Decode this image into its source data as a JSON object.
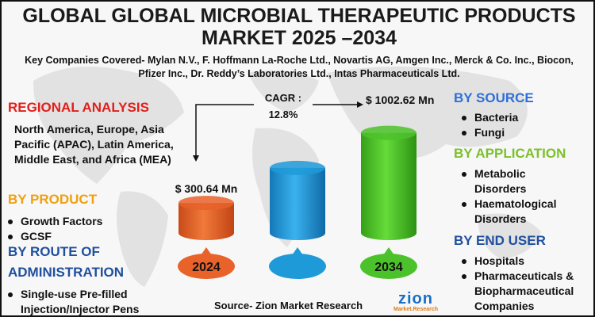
{
  "title": "GLOBAL GLOBAL MICROBIAL THERAPEUTIC PRODUCTS MARKET 2025 –2034",
  "key_companies": "Key Companies Covered- Mylan N.V., F. Hoffmann La-Roche Ltd., Novartis AG, Amgen Inc., Merck & Co. Inc., Biocon, Pfizer Inc., Dr. Reddy’s Laboratories Ltd., Intas Pharmaceuticals Ltd.",
  "regional": {
    "heading": "REGIONAL ANALYSIS",
    "text": "North America, Europe, Asia Pacific (APAC), Latin America, Middle East, and Africa (MEA)"
  },
  "by_product": {
    "heading": "BY PRODUCT",
    "items": [
      "Growth Factors",
      "GCSF"
    ]
  },
  "by_route": {
    "heading_line1": "BY ROUTE OF",
    "heading_line2": "ADMINISTRATION",
    "items": [
      "Single-use Pre-filled Injection/Injector Pens"
    ]
  },
  "by_source": {
    "heading": "BY SOURCE",
    "items": [
      "Bacteria",
      "Fungi"
    ]
  },
  "by_application": {
    "heading": "BY APPLICATION",
    "items": [
      "Metabolic Disorders",
      "Haematological Disorders"
    ]
  },
  "by_end_user": {
    "heading": "BY END USER",
    "items": [
      "Hospitals",
      "Pharmaceuticals & Biopharmaceutical Companies"
    ]
  },
  "source": "Source- Zion Market Research",
  "logo": {
    "word": "zion",
    "sub": "Market.Research"
  },
  "colors": {
    "bar_2024": "#e8622a",
    "bar_mid": "#1f9ad8",
    "bar_2034": "#4cc22a",
    "regional_heading": "#e0201b",
    "product_heading": "#f0a010",
    "source_heading": "#2f6fd6",
    "application_heading": "#7cc02a",
    "route_heading": "#1f4f9e"
  },
  "chart_data": {
    "type": "bar",
    "categories": [
      "2024",
      "",
      "2034"
    ],
    "values": [
      300.64,
      651.63,
      1002.62
    ],
    "value_labels": [
      "$ 300.64 Mn",
      "",
      "$ 1002.62 Mn"
    ],
    "cagr_label": "CAGR :",
    "cagr_value": "12.8%"
  }
}
